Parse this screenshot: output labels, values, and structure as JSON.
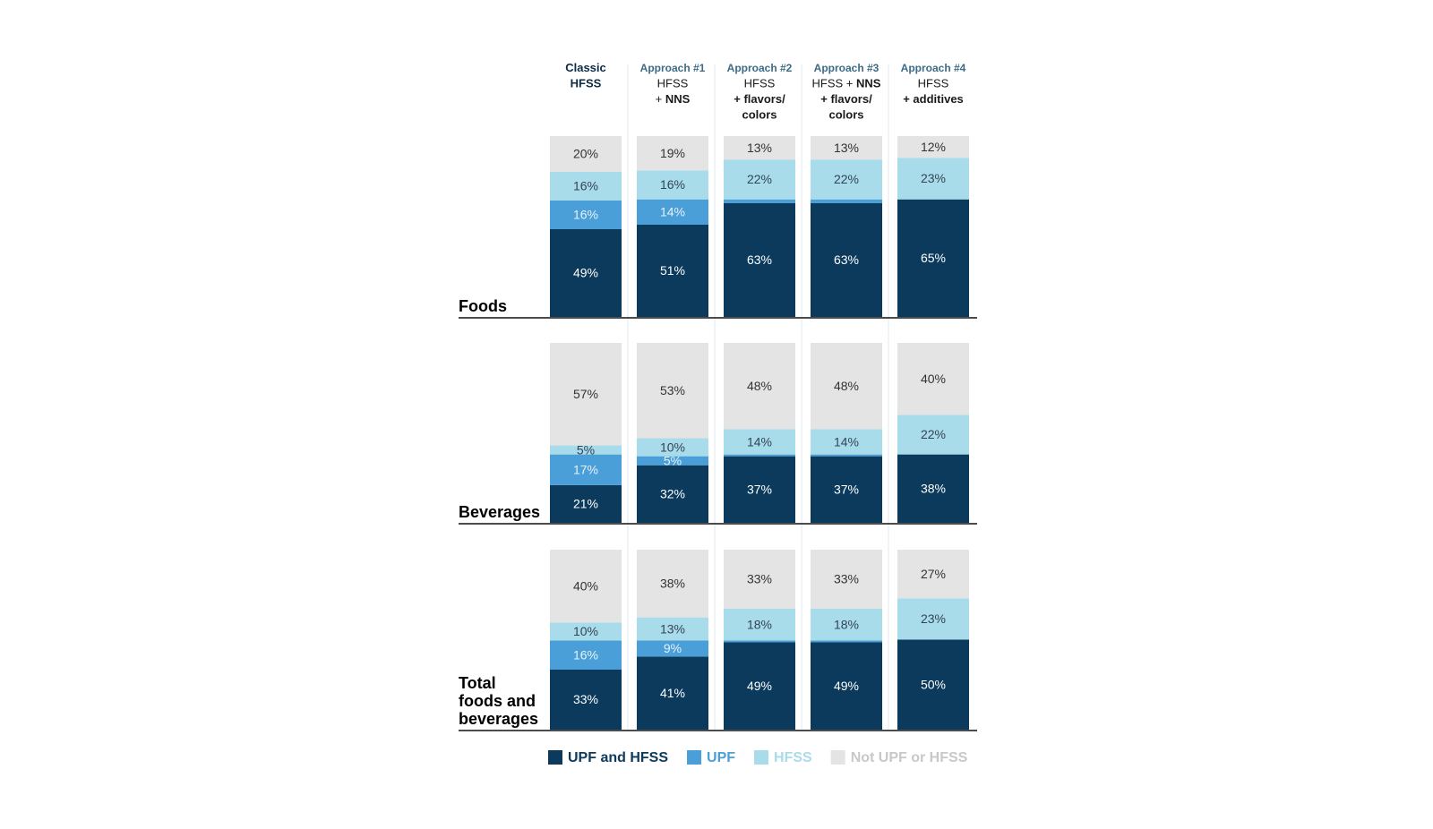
{
  "chart_data": {
    "type": "bar",
    "stacked": true,
    "normalized": true,
    "columns": [
      {
        "header": [
          [
            [
              "",
              "Classic",
              "title"
            ]
          ],
          [
            [
              "",
              "HFSS",
              "title"
            ]
          ]
        ]
      },
      {
        "header": [
          [
            [
              "",
              "Approach #1",
              "approach"
            ]
          ],
          [
            [
              "",
              "HFSS",
              "plain"
            ]
          ],
          [
            [
              "",
              "+ ",
              "plain"
            ],
            [
              "",
              "NNS",
              "bold"
            ]
          ]
        ]
      },
      {
        "header": [
          [
            [
              "",
              "Approach #2",
              "approach"
            ]
          ],
          [
            [
              "",
              "HFSS",
              "plain"
            ]
          ],
          [
            [
              "",
              "+ flavors/",
              "bold"
            ]
          ],
          [
            [
              "",
              "colors",
              "bold"
            ]
          ]
        ]
      },
      {
        "header": [
          [
            [
              "",
              "Approach #3",
              "approach"
            ]
          ],
          [
            [
              "",
              "HFSS + ",
              "plain"
            ],
            [
              "",
              "NNS",
              "bold"
            ]
          ],
          [
            [
              "",
              "+ flavors/",
              "bold"
            ]
          ],
          [
            [
              "",
              "colors",
              "bold"
            ]
          ]
        ]
      },
      {
        "header": [
          [
            [
              "",
              "Approach #4",
              "approach"
            ]
          ],
          [
            [
              "",
              "HFSS",
              "plain"
            ]
          ],
          [
            [
              "",
              "+ additives",
              "bold"
            ]
          ]
        ]
      }
    ],
    "series": [
      {
        "name": "UPF and HFSS",
        "color": "#0b3a5c",
        "label_color": "#ffffff"
      },
      {
        "name": "UPF",
        "color": "#4a9fd8",
        "label_color": "#e6f2fa"
      },
      {
        "name": "HFSS",
        "color": "#a8dcea",
        "label_color": "#334455"
      },
      {
        "name": "Not UPF or HFSS",
        "color": "#e4e4e4",
        "label_color": "#333333"
      }
    ],
    "panels": [
      {
        "title": [
          "Foods"
        ],
        "values": [
          [
            49,
            16,
            16,
            20
          ],
          [
            51,
            14,
            16,
            19
          ],
          [
            63,
            2,
            22,
            13
          ],
          [
            63,
            2,
            22,
            13
          ],
          [
            65,
            0,
            23,
            12
          ]
        ],
        "labels": [
          [
            "49%",
            "16%",
            "16%",
            "20%"
          ],
          [
            "51%",
            "14%",
            "16%",
            "19%"
          ],
          [
            "63%",
            "",
            "22%",
            "13%"
          ],
          [
            "63%",
            "",
            "22%",
            "13%"
          ],
          [
            "65%",
            "",
            "23%",
            "12%"
          ]
        ]
      },
      {
        "title": [
          "Beverages"
        ],
        "values": [
          [
            21,
            17,
            5,
            57
          ],
          [
            32,
            5,
            10,
            53
          ],
          [
            37,
            1,
            14,
            48
          ],
          [
            37,
            1,
            14,
            48
          ],
          [
            38,
            0,
            22,
            40
          ]
        ],
        "labels": [
          [
            "21%",
            "17%",
            "5%",
            "57%"
          ],
          [
            "32%",
            "5%",
            "10%",
            "53%"
          ],
          [
            "37%",
            "",
            "14%",
            "48%"
          ],
          [
            "37%",
            "",
            "14%",
            "48%"
          ],
          [
            "38%",
            "",
            "22%",
            "40%"
          ]
        ]
      },
      {
        "title": [
          "Total",
          "foods and",
          "beverages"
        ],
        "values": [
          [
            33,
            16,
            10,
            40
          ],
          [
            41,
            9,
            13,
            38
          ],
          [
            49,
            1,
            18,
            33
          ],
          [
            49,
            1,
            18,
            33
          ],
          [
            50,
            0,
            23,
            27
          ]
        ],
        "labels": [
          [
            "33%",
            "16%",
            "10%",
            "40%"
          ],
          [
            "41%",
            "9%",
            "13%",
            "38%"
          ],
          [
            "49%",
            "",
            "18%",
            "33%"
          ],
          [
            "49%",
            "",
            "18%",
            "33%"
          ],
          [
            "50%",
            "",
            "23%",
            "27%"
          ]
        ]
      }
    ],
    "legend": {
      "position": "bottom",
      "items": [
        {
          "name": "UPF and HFSS",
          "swatch": "#0b3a5c",
          "text_color": "#0b3a5c"
        },
        {
          "name": "UPF",
          "swatch": "#4a9fd8",
          "text_color": "#4a9fd8"
        },
        {
          "name": "HFSS",
          "swatch": "#a8dcea",
          "text_color": "#a8dcea"
        },
        {
          "name": "Not UPF or HFSS",
          "swatch": "#e4e4e4",
          "text_color": "#c8c8c8"
        }
      ]
    }
  }
}
